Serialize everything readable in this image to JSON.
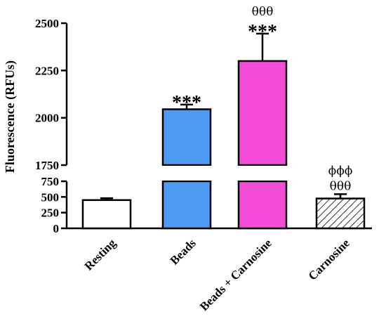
{
  "chart_data": {
    "type": "bar",
    "ylabel": "Fluorescence (RFUs)",
    "xlabel": "",
    "title": "",
    "categories": [
      "Resting",
      "Beads",
      "Beads + Carnosine",
      "Carnosine"
    ],
    "values": [
      450,
      2045,
      2300,
      475
    ],
    "errors": [
      30,
      25,
      145,
      70
    ],
    "colors": [
      "#ffffff",
      "#4d9bf5",
      "#f54bd9",
      "hatched"
    ],
    "annotations": [
      {
        "category": "Resting",
        "lines": []
      },
      {
        "category": "Beads",
        "lines": [
          "***"
        ]
      },
      {
        "category": "Beads + Carnosine",
        "lines": [
          "θθθ",
          "***"
        ]
      },
      {
        "category": "Carnosine",
        "lines": [
          "ϕϕϕ",
          "θθθ"
        ]
      }
    ],
    "axis_segments": [
      {
        "ylim": [
          0,
          750
        ],
        "ticks": [
          "0",
          "250",
          "500",
          "750"
        ]
      },
      {
        "ylim": [
          1750,
          2500
        ],
        "ticks": [
          "1750",
          "2000",
          "2250",
          "2500"
        ]
      }
    ],
    "broken_axis": true,
    "grid": false,
    "legend": "none"
  }
}
